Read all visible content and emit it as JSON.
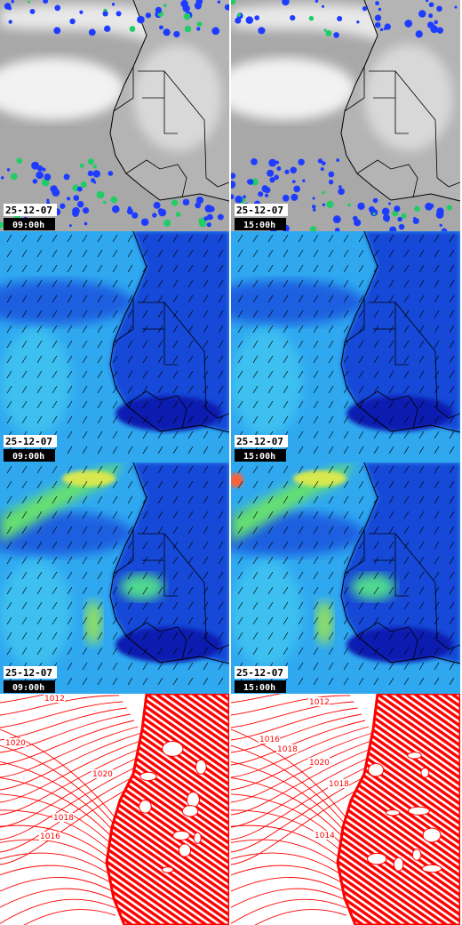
{
  "panels": [
    {
      "date": "25-12-07",
      "time": "09:00h"
    },
    {
      "date": "25-12-07",
      "time": "15:00h"
    },
    {
      "date": "25-12-07",
      "time": "09:00h"
    },
    {
      "date": "25-12-07",
      "time": "15:00h"
    },
    {
      "date": "25-12-07",
      "time": "09:00h"
    },
    {
      "date": "25-12-07",
      "time": "15:00h"
    }
  ],
  "pressure_panels": [
    {
      "labels": [
        "1012",
        "1020",
        "1020",
        "1018",
        "1016"
      ]
    },
    {
      "labels": [
        "1012",
        "1016",
        "1018",
        "1020",
        "1018",
        "1014"
      ]
    }
  ]
}
